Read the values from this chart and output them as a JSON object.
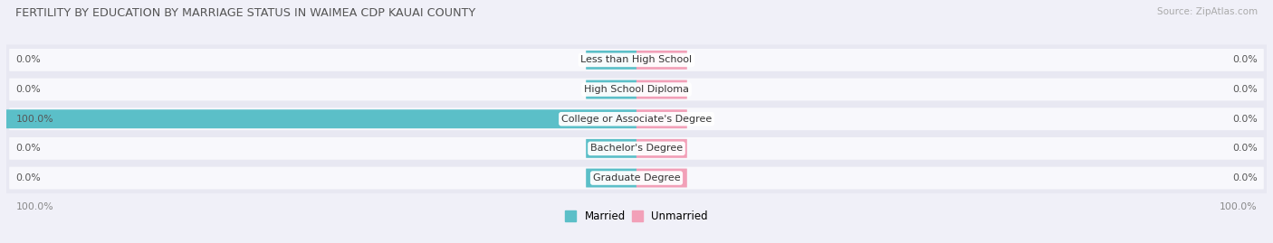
{
  "title": "FERTILITY BY EDUCATION BY MARRIAGE STATUS IN WAIMEA CDP KAUAI COUNTY",
  "source": "Source: ZipAtlas.com",
  "categories": [
    "Less than High School",
    "High School Diploma",
    "College or Associate's Degree",
    "Bachelor's Degree",
    "Graduate Degree"
  ],
  "married_values": [
    0.0,
    0.0,
    100.0,
    0.0,
    0.0
  ],
  "unmarried_values": [
    0.0,
    0.0,
    0.0,
    0.0,
    0.0
  ],
  "married_color": "#5bbfc8",
  "unmarried_color": "#f2a0b8",
  "bg_color": "#f0f0f8",
  "row_color": "#e8e8f2",
  "inner_bar_bg": "#f8f8fc",
  "stub_size": 8.0,
  "xlim": 100.0,
  "figsize": [
    14.06,
    2.69
  ],
  "dpi": 100
}
